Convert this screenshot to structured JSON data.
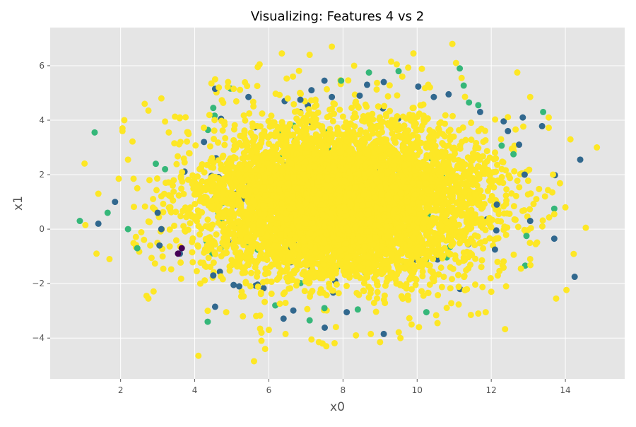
{
  "chart_data": {
    "type": "scatter",
    "title": "Visualizing: Features 4 vs 2",
    "xlabel": "x0",
    "ylabel": "x1",
    "xlim": [
      0.1,
      15.6
    ],
    "ylim": [
      -5.5,
      7.4
    ],
    "xticks": [
      2,
      4,
      6,
      8,
      10,
      12,
      14
    ],
    "yticks": [
      -4,
      -2,
      0,
      2,
      4,
      6
    ],
    "grid": true,
    "legend": "none",
    "colors": {
      "background": "#E5E5E5",
      "grid": "#FFFFFF",
      "class_0": "#440154",
      "class_1": "#31688E",
      "class_2": "#35B779",
      "class_3": "#FDE725"
    },
    "cloud": {
      "center": [
        8.0,
        1.0
      ],
      "std": [
        2.0,
        1.5
      ],
      "points_estimate": 6000,
      "dominant_color": "#FDE725"
    },
    "series": [
      {
        "color": "#31688E",
        "points": [
          [
            1.4,
            0.2
          ],
          [
            1.85,
            1.0
          ],
          [
            3.0,
            0.6
          ],
          [
            3.05,
            -0.6
          ],
          [
            3.1,
            0.0
          ],
          [
            3.6,
            -0.9
          ],
          [
            4.25,
            3.2
          ],
          [
            4.5,
            -1.7
          ],
          [
            4.55,
            -2.85
          ],
          [
            4.55,
            5.15
          ],
          [
            5.05,
            -2.05
          ],
          [
            5.2,
            -2.1
          ],
          [
            5.45,
            4.85
          ],
          [
            6.85,
            4.75
          ],
          [
            7.15,
            5.1
          ],
          [
            7.5,
            5.45
          ],
          [
            7.7,
            4.85
          ],
          [
            8.1,
            -3.05
          ],
          [
            8.45,
            4.9
          ],
          [
            8.65,
            5.3
          ],
          [
            9.1,
            5.4
          ],
          [
            9.1,
            -3.85
          ],
          [
            10.45,
            4.85
          ],
          [
            10.85,
            4.95
          ],
          [
            11.7,
            4.3
          ],
          [
            12.1,
            -0.75
          ],
          [
            12.15,
            0.9
          ],
          [
            12.45,
            3.6
          ],
          [
            12.75,
            3.1
          ],
          [
            12.85,
            4.1
          ],
          [
            12.9,
            2.0
          ],
          [
            13.05,
            0.3
          ],
          [
            13.7,
            -0.35
          ],
          [
            14.25,
            -1.75
          ],
          [
            14.4,
            2.55
          ]
        ]
      },
      {
        "color": "#35B779",
        "points": [
          [
            0.9,
            0.3
          ],
          [
            1.3,
            3.55
          ],
          [
            1.65,
            0.6
          ],
          [
            2.2,
            0.0
          ],
          [
            2.45,
            -0.7
          ],
          [
            2.95,
            2.4
          ],
          [
            3.2,
            2.2
          ],
          [
            4.35,
            -3.4
          ],
          [
            4.5,
            4.45
          ],
          [
            7.1,
            -3.35
          ],
          [
            7.5,
            -2.9
          ],
          [
            7.95,
            5.45
          ],
          [
            8.4,
            -2.95
          ],
          [
            8.7,
            5.75
          ],
          [
            9.5,
            5.8
          ],
          [
            10.25,
            -3.05
          ],
          [
            11.15,
            5.9
          ],
          [
            11.4,
            4.65
          ],
          [
            11.65,
            4.55
          ],
          [
            12.6,
            2.75
          ],
          [
            12.95,
            -0.25
          ],
          [
            13.4,
            4.3
          ],
          [
            13.7,
            0.75
          ]
        ]
      },
      {
        "color": "#440154",
        "points": [
          [
            3.55,
            -0.9
          ],
          [
            3.65,
            -0.7
          ]
        ]
      },
      {
        "color": "#FDE725",
        "points": [
          [
            1.05,
            0.15
          ],
          [
            1.35,
            -0.9
          ],
          [
            1.4,
            1.3
          ],
          [
            1.7,
            -1.1
          ],
          [
            1.95,
            1.85
          ],
          [
            2.05,
            3.6
          ],
          [
            2.05,
            3.7
          ],
          [
            2.1,
            4.0
          ],
          [
            2.2,
            2.55
          ],
          [
            2.35,
            1.85
          ],
          [
            2.45,
            1.5
          ],
          [
            2.65,
            4.6
          ],
          [
            2.7,
            -2.45
          ],
          [
            2.75,
            -2.55
          ],
          [
            2.8,
            -0.6
          ],
          [
            3.1,
            4.8
          ],
          [
            3.2,
            3.95
          ],
          [
            3.3,
            3.55
          ],
          [
            3.45,
            3.15
          ],
          [
            3.6,
            4.1
          ],
          [
            4.1,
            -4.65
          ],
          [
            4.15,
            -2.0
          ],
          [
            4.35,
            -3.0
          ],
          [
            4.45,
            5.35
          ],
          [
            4.55,
            5.5
          ],
          [
            4.65,
            5.2
          ],
          [
            4.85,
            -3.05
          ],
          [
            4.9,
            5.4
          ],
          [
            5.05,
            5.15
          ],
          [
            5.3,
            -3.2
          ],
          [
            5.6,
            -4.85
          ],
          [
            5.7,
            5.95
          ],
          [
            5.75,
            6.05
          ],
          [
            5.8,
            -4.1
          ],
          [
            5.9,
            -4.4
          ],
          [
            6.0,
            -3.7
          ],
          [
            6.35,
            6.45
          ],
          [
            6.45,
            -3.85
          ],
          [
            6.65,
            5.6
          ],
          [
            7.1,
            6.4
          ],
          [
            7.15,
            -4.05
          ],
          [
            7.35,
            -4.15
          ],
          [
            7.45,
            -4.2
          ],
          [
            7.55,
            -4.3
          ],
          [
            7.7,
            6.7
          ],
          [
            8.3,
            6.0
          ],
          [
            8.35,
            -3.9
          ],
          [
            8.75,
            -3.85
          ],
          [
            9.0,
            -4.15
          ],
          [
            9.3,
            6.15
          ],
          [
            9.45,
            6.05
          ],
          [
            9.55,
            -4.0
          ],
          [
            9.6,
            5.6
          ],
          [
            9.85,
            -3.5
          ],
          [
            9.9,
            6.45
          ],
          [
            10.05,
            -3.6
          ],
          [
            10.3,
            5.3
          ],
          [
            10.55,
            -3.45
          ],
          [
            10.95,
            6.8
          ],
          [
            11.05,
            6.1
          ],
          [
            11.2,
            5.55
          ],
          [
            11.45,
            -3.15
          ],
          [
            11.65,
            -3.1
          ],
          [
            11.85,
            -3.05
          ],
          [
            12.0,
            -2.3
          ],
          [
            12.4,
            -2.1
          ],
          [
            12.8,
            -1.45
          ],
          [
            13.05,
            4.85
          ],
          [
            13.05,
            -1.1
          ],
          [
            13.2,
            -0.55
          ],
          [
            13.45,
            1.2
          ],
          [
            13.55,
            4.1
          ],
          [
            13.7,
            0.55
          ],
          [
            13.75,
            -2.55
          ],
          [
            14.0,
            0.8
          ],
          [
            14.55,
            0.05
          ],
          [
            14.85,
            3.0
          ]
        ]
      }
    ]
  }
}
